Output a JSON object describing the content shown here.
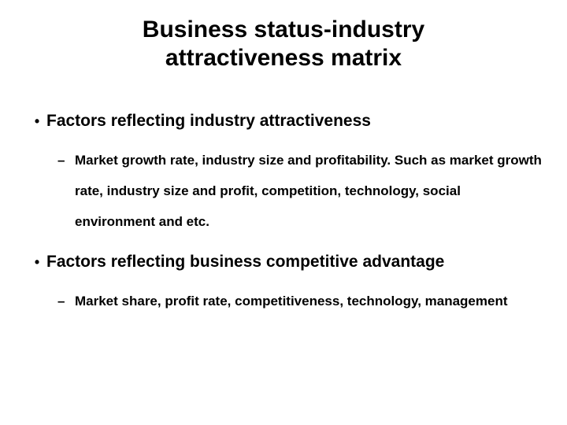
{
  "slide": {
    "title": "Business status-industry attractiveness matrix",
    "background_color": "#ffffff",
    "text_color": "#000000",
    "title_fontsize": 30,
    "l1_fontsize": 21,
    "l2_fontsize": 17,
    "bullets": [
      {
        "text": "Factors reflecting industry attractiveness",
        "sub": [
          {
            "text": "Market growth rate, industry size and profitability. Such as market growth rate, industry size and profit, competition, technology, social environment and etc."
          }
        ]
      },
      {
        "text": "Factors reflecting business competitive advantage",
        "sub": [
          {
            "text": "Market share, profit rate, competitiveness, technology, management"
          }
        ]
      }
    ]
  }
}
